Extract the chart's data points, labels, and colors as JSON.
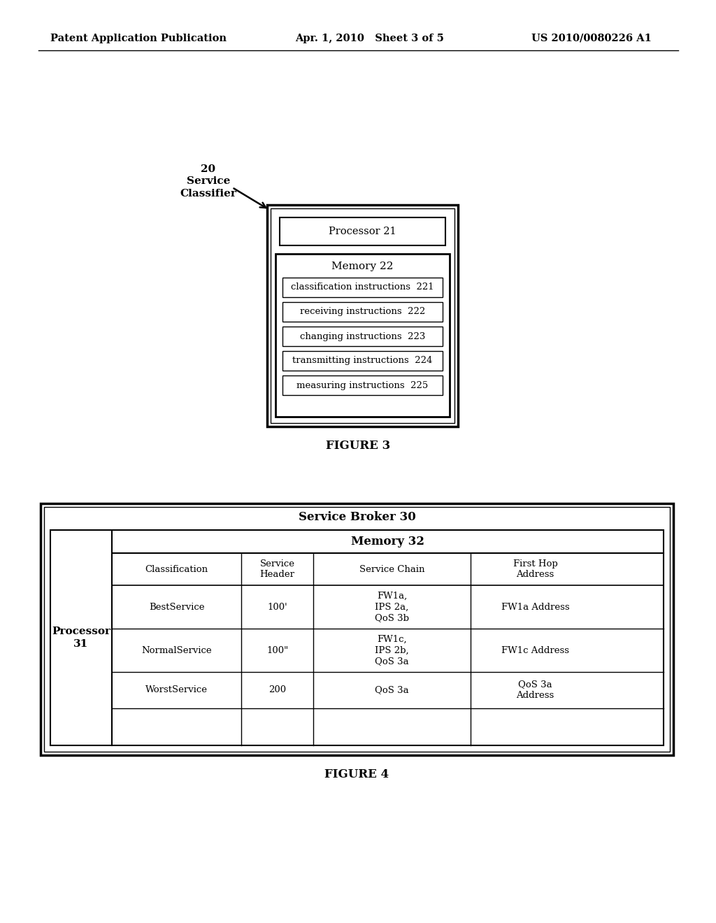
{
  "header_left": "Patent Application Publication",
  "header_center": "Apr. 1, 2010   Sheet 3 of 5",
  "header_right": "US 2010/0080226 A1",
  "fig3_caption": "FIGURE 3",
  "fig3_label_text": "20\nService\nClassifier",
  "fig3_processor_label": "Processor 21",
  "fig3_memory_label": "Memory 22",
  "fig3_instructions": [
    "classification instructions  221",
    "receiving instructions  222",
    "changing instructions  223",
    "transmitting instructions  224",
    "measuring instructions  225"
  ],
  "fig4_caption": "FIGURE 4",
  "fig4_outer_label": "Service Broker 30",
  "fig4_processor_label": "Processor\n31",
  "fig4_memory_label": "Memory 32",
  "fig4_col_headers": [
    "Classification",
    "Service\nHeader",
    "Service Chain",
    "First Hop\nAddress"
  ],
  "fig4_rows": [
    [
      "BestService",
      "100'",
      "FW1a,\nIPS 2a,\nQoS 3b",
      "FW1a Address"
    ],
    [
      "NormalService",
      "100\"",
      "FW1c,\nIPS 2b,\nQoS 3a",
      "FW1c Address"
    ],
    [
      "WorstService",
      "200",
      "QoS 3a",
      "QoS 3a\nAddress"
    ]
  ],
  "bg_color": "#ffffff",
  "text_color": "#000000"
}
